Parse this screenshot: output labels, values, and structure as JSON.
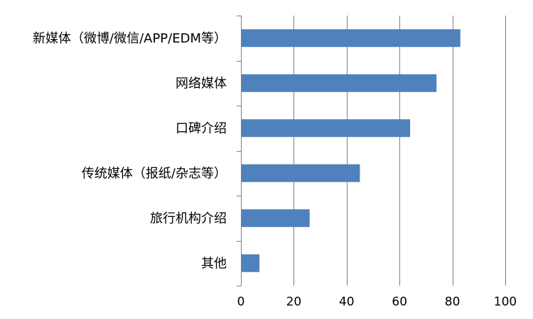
{
  "chart_data": {
    "type": "bar",
    "orientation": "horizontal",
    "categories": [
      "新媒体（微博/微信/APP/EDM等）",
      "网络媒体",
      "口碑介绍",
      "传统媒体（报纸/杂志等）",
      "旅行机构介绍",
      "其他"
    ],
    "values": [
      83,
      74,
      64,
      45,
      26,
      7
    ],
    "xlim": [
      0,
      100
    ],
    "xticks": [
      0,
      20,
      40,
      60,
      80,
      100
    ],
    "grid": "vertical",
    "legend": "none",
    "bar_color": "#4F81BD",
    "grid_color": "#7F7F7F"
  }
}
